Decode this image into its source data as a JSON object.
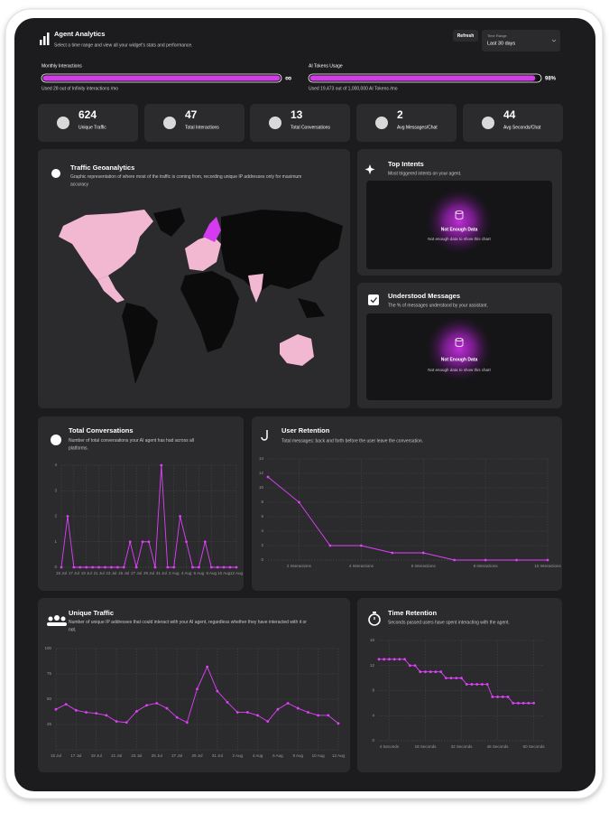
{
  "header": {
    "title": "Agent Analytics",
    "subtitle": "Select a time range and view all your widget's stats and performance.",
    "refresh": "Refresh",
    "range_label": "Time Range",
    "range_value": "Last 30 days"
  },
  "usage": [
    {
      "label": "Monthly Interactions",
      "percent": 100,
      "end_label": "∞",
      "note": "Used 28 out of Infinity interactions /mo"
    },
    {
      "label": "AI Tokens Usage",
      "percent": 98,
      "value_label": "98%",
      "note": "Used 19,473 out of 1,000,000 AI Tokens /mo"
    }
  ],
  "stats": [
    {
      "value": 624,
      "label": "Unique Traffic"
    },
    {
      "value": 47,
      "label": "Total Interactions"
    },
    {
      "value": 13,
      "label": "Total Conversations"
    },
    {
      "value": 2,
      "label": "Avg Messages/Chat"
    },
    {
      "value": 44,
      "label": "Avg Seconds/Chat"
    }
  ],
  "geo": {
    "title": "Traffic Geoanalytics",
    "subtitle": "Graphic representation of where most of the traffic is coming from, recording unique IP addresses only for maximum accuracy"
  },
  "top_intents": {
    "title": "Top Intents",
    "subtitle": "Most triggered intents on your agent.",
    "empty_title": "Not Enough Data",
    "empty_text": "Not enough data to show this chart"
  },
  "understood": {
    "title": "Understood Messages",
    "subtitle": "The % of messages understood by your assistant.",
    "empty_title": "Not Enough Data",
    "empty_text": "Not enough data to show this chart"
  },
  "chart_data": [
    {
      "type": "line",
      "title": "Total Conversations",
      "subtitle": "Number of total conversations your AI agent has had across all platforms.",
      "color": "#e040fb",
      "grid": true,
      "categories": [
        "15 Jul",
        null,
        "17 Jul",
        null,
        "19 Jul",
        null,
        "21 Jul",
        null,
        "23 Jul",
        null,
        "25 Jul",
        null,
        "27 Jul",
        null,
        "29 Jul",
        null,
        "31 Jul",
        null,
        "2 Aug",
        null,
        "4 Aug",
        null,
        "6 Aug",
        null,
        "8 Aug",
        null,
        "10 Aug",
        null,
        "12 Aug"
      ],
      "values": [
        0,
        2,
        0,
        0,
        0,
        0,
        0,
        0,
        0,
        0,
        0,
        1,
        0,
        1,
        1,
        0,
        4,
        0,
        0,
        2,
        1,
        0,
        0,
        1,
        0,
        0,
        0,
        0,
        0
      ],
      "ylim": [
        0,
        4
      ],
      "yticks": [
        0,
        1,
        2,
        3,
        4
      ]
    },
    {
      "type": "line",
      "title": "User Retention",
      "subtitle": "Total messages: back and forth before the user leave the conversation.",
      "color": "#e040fb",
      "grid": true,
      "x": [
        1,
        2,
        3,
        4,
        5,
        6,
        7,
        8,
        9,
        10
      ],
      "values": [
        11.5,
        8,
        2,
        2,
        1,
        1,
        0,
        0,
        0,
        0
      ],
      "xlim": [
        1,
        10
      ],
      "xticks": [
        {
          "value": 2,
          "label": "2 Interactions"
        },
        {
          "value": 4,
          "label": "4 Interactions"
        },
        {
          "value": 6,
          "label": "6 Interactions"
        },
        {
          "value": 8,
          "label": "8 Interactions"
        },
        {
          "value": 10,
          "label": "10 Interactions"
        }
      ],
      "ylim": [
        0,
        14
      ],
      "yticks": [
        0,
        2,
        4,
        6,
        8,
        10,
        12,
        14
      ]
    },
    {
      "type": "line",
      "title": "Unique Traffic",
      "subtitle": "Number of unique IP addresses that could interact with your AI agent, regardless whether they have interacted with it or not.",
      "color": "#e040fb",
      "grid": true,
      "categories": [
        "15 Jul",
        null,
        "17 Jul",
        null,
        "19 Jul",
        null,
        "21 Jul",
        null,
        "23 Jul",
        null,
        "25 Jul",
        null,
        "27 Jul",
        null,
        "29 Jul",
        null,
        "31 Jul",
        null,
        "2 Aug",
        null,
        "4 Aug",
        null,
        "6 Aug",
        null,
        "8 Aug",
        null,
        "10 Aug",
        null,
        "12 Aug"
      ],
      "values": [
        40,
        45,
        39,
        37,
        36,
        34,
        28,
        27,
        38,
        44,
        46,
        41,
        32,
        27,
        60,
        82,
        58,
        47,
        37,
        37,
        34,
        28,
        40,
        46,
        41,
        37,
        34,
        34,
        26
      ],
      "ylim": [
        0,
        100
      ],
      "yticks": [
        25,
        50,
        75,
        100
      ]
    },
    {
      "type": "line",
      "title": "Time Retention",
      "subtitle": "Seconds passed users have spent interacting with the agent.",
      "color": "#e040fb",
      "grid": true,
      "x": [
        0,
        2,
        4,
        6,
        8,
        10,
        12,
        14,
        16,
        18,
        20,
        22,
        24,
        26,
        28,
        30,
        32,
        34,
        36,
        38,
        40,
        42,
        44,
        46,
        48,
        50,
        52,
        54,
        56,
        58,
        60
      ],
      "values": [
        13,
        13,
        13,
        13,
        13,
        13,
        12,
        12,
        11,
        11,
        11,
        11,
        11,
        10,
        10,
        10,
        10,
        9,
        9,
        9,
        9,
        9,
        7,
        7,
        7,
        7,
        6,
        6,
        6,
        6,
        6
      ],
      "xlim": [
        0,
        64
      ],
      "xticks": [
        {
          "value": 4,
          "label": "4 Seconds"
        },
        {
          "value": 18,
          "label": "18 Seconds"
        },
        {
          "value": 32,
          "label": "32 Seconds"
        },
        {
          "value": 46,
          "label": "46 Seconds"
        },
        {
          "value": 60,
          "label": "60 Seconds"
        }
      ],
      "ylim": [
        0,
        16
      ],
      "yticks": [
        0,
        4,
        8,
        12,
        16
      ]
    }
  ]
}
